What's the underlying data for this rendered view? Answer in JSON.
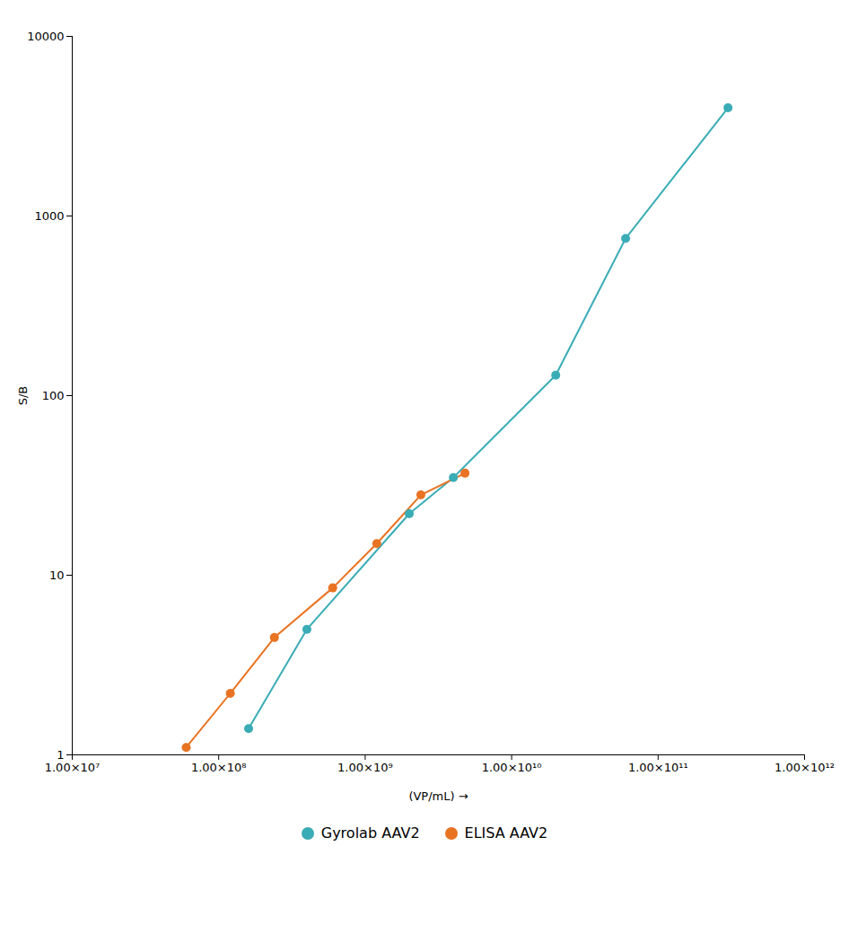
{
  "chart_data": {
    "type": "line",
    "xlabel": "(VP/mL)",
    "ylabel": "S/B",
    "log": true,
    "xlim": [
      10000000,
      1000000000000
    ],
    "ylim": [
      1,
      10000
    ],
    "xticks": [
      {
        "value": 10000000,
        "label": "1.00×10⁷"
      },
      {
        "value": 100000000,
        "label": "1.00×10⁸"
      },
      {
        "value": 1000000000,
        "label": "1.00×10⁹"
      },
      {
        "value": 10000000000,
        "label": "1.00×10¹⁰"
      },
      {
        "value": 100000000000,
        "label": "1.00×10¹¹"
      },
      {
        "value": 1000000000000,
        "label": "1.00×10¹²"
      }
    ],
    "yticks": [
      1,
      10,
      100,
      1000,
      10000
    ],
    "grid": false,
    "legend": "bottom",
    "marker": "circle",
    "series": [
      {
        "name": "Gyrolab AAV2",
        "color": "#3aacb5",
        "x": [
          160000000,
          400000000,
          2000000000,
          4000000000,
          20000000000,
          60000000000,
          300000000000
        ],
        "values": [
          1.4,
          5.0,
          22,
          35,
          130,
          750,
          4000
        ]
      },
      {
        "name": "ELISA AAV2",
        "color": "#e87322",
        "x": [
          60000000,
          120000000,
          240000000,
          600000000,
          1200000000,
          2400000000,
          4800000000
        ],
        "values": [
          1.1,
          2.2,
          4.5,
          8.5,
          15,
          28,
          37
        ]
      }
    ]
  }
}
